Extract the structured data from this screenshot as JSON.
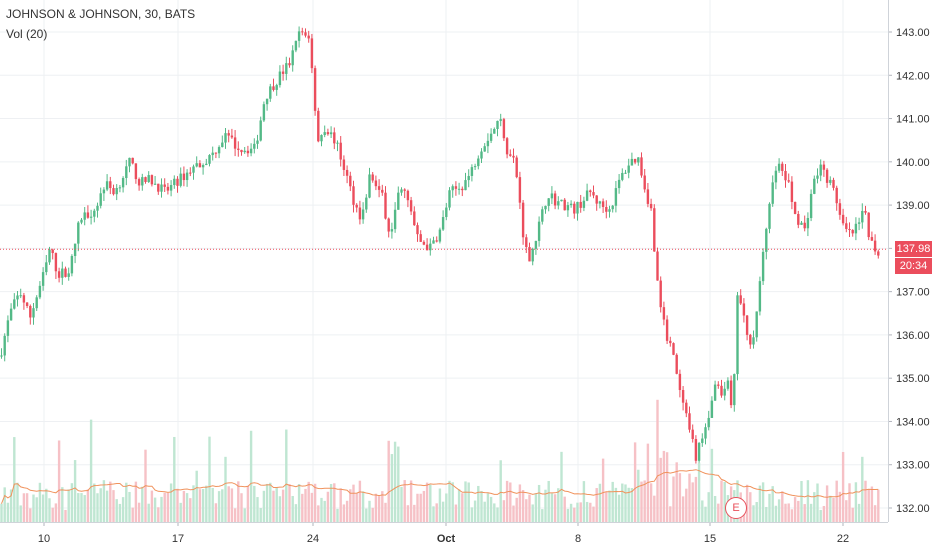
{
  "header": {
    "title": "JOHNSON & JOHNSON, 30, BATS",
    "volume_label": "Vol (20)"
  },
  "colors": {
    "up": "#53b987",
    "down": "#eb4d5c",
    "up_volume": "#bfe6d2",
    "down_volume": "#f6c1c6",
    "volume_ma": "#f0925c",
    "last_price": "#eb4d5c",
    "grid": "#eef0f3"
  },
  "price_axis": {
    "ticks": [
      "143.00",
      "142.00",
      "141.00",
      "140.00",
      "139.00",
      "138.00",
      "137.00",
      "136.00",
      "135.00",
      "134.00",
      "133.00",
      "132.00"
    ]
  },
  "time_axis": {
    "ticks": [
      "10",
      "17",
      "24",
      "Oct",
      "8",
      "15",
      "22"
    ]
  },
  "last_price": {
    "value": "137.98",
    "countdown": "20:34"
  },
  "earnings_marker": {
    "label": "E"
  },
  "chart_data": {
    "type": "candlestick",
    "title": "JOHNSON & JOHNSON, 30, BATS",
    "interval": "30",
    "ylim": [
      131.75,
      143.25
    ],
    "x_tick_labels": [
      "10",
      "17",
      "24",
      "Oct",
      "8",
      "15",
      "22"
    ],
    "last_price": 137.98,
    "volume_indicator": "Vol (20)",
    "price_path": [
      [
        0,
        135.5
      ],
      [
        10,
        136.5
      ],
      [
        20,
        137.0
      ],
      [
        30,
        136.4
      ],
      [
        45,
        137.5
      ],
      [
        50,
        138.0
      ],
      [
        58,
        137.4
      ],
      [
        70,
        137.5
      ],
      [
        80,
        138.7
      ],
      [
        95,
        138.9
      ],
      [
        105,
        139.5
      ],
      [
        115,
        139.3
      ],
      [
        130,
        140.0
      ],
      [
        140,
        139.5
      ],
      [
        150,
        139.6
      ],
      [
        165,
        139.3
      ],
      [
        180,
        139.6
      ],
      [
        195,
        139.9
      ],
      [
        210,
        140.1
      ],
      [
        225,
        140.6
      ],
      [
        240,
        140.3
      ],
      [
        255,
        140.3
      ],
      [
        265,
        141.5
      ],
      [
        280,
        142.0
      ],
      [
        290,
        142.3
      ],
      [
        300,
        143.0
      ],
      [
        310,
        142.9
      ],
      [
        312,
        142.1
      ],
      [
        318,
        140.5
      ],
      [
        325,
        140.8
      ],
      [
        335,
        140.5
      ],
      [
        345,
        139.8
      ],
      [
        355,
        139.0
      ],
      [
        362,
        138.7
      ],
      [
        370,
        139.7
      ],
      [
        382,
        139.2
      ],
      [
        390,
        138.3
      ],
      [
        395,
        139.0
      ],
      [
        402,
        139.5
      ],
      [
        410,
        138.9
      ],
      [
        418,
        138.2
      ],
      [
        430,
        138.0
      ],
      [
        440,
        138.4
      ],
      [
        450,
        139.3
      ],
      [
        460,
        139.4
      ],
      [
        470,
        139.7
      ],
      [
        480,
        140.3
      ],
      [
        492,
        140.7
      ],
      [
        500,
        141.0
      ],
      [
        508,
        140.2
      ],
      [
        515,
        140.0
      ],
      [
        520,
        139.0
      ],
      [
        525,
        138.0
      ],
      [
        530,
        137.8
      ],
      [
        540,
        138.6
      ],
      [
        548,
        139.3
      ],
      [
        555,
        139.1
      ],
      [
        565,
        139.0
      ],
      [
        575,
        138.9
      ],
      [
        590,
        139.3
      ],
      [
        600,
        139.0
      ],
      [
        610,
        138.9
      ],
      [
        620,
        139.6
      ],
      [
        630,
        140.0
      ],
      [
        638,
        140.1
      ],
      [
        646,
        139.3
      ],
      [
        652,
        138.8
      ],
      [
        656,
        137.5
      ],
      [
        660,
        136.7
      ],
      [
        666,
        136.0
      ],
      [
        672,
        135.8
      ],
      [
        678,
        134.8
      ],
      [
        684,
        134.3
      ],
      [
        690,
        133.7
      ],
      [
        696,
        133.2
      ],
      [
        702,
        133.6
      ],
      [
        708,
        134.1
      ],
      [
        715,
        134.8
      ],
      [
        722,
        134.6
      ],
      [
        727,
        135.0
      ],
      [
        733,
        134.0
      ],
      [
        737,
        137.0
      ],
      [
        742,
        136.6
      ],
      [
        748,
        135.8
      ],
      [
        755,
        136.1
      ],
      [
        760,
        137.3
      ],
      [
        766,
        138.3
      ],
      [
        772,
        139.6
      ],
      [
        780,
        139.9
      ],
      [
        788,
        139.5
      ],
      [
        795,
        138.8
      ],
      [
        805,
        138.4
      ],
      [
        812,
        139.4
      ],
      [
        820,
        139.9
      ],
      [
        828,
        139.6
      ],
      [
        836,
        139.2
      ],
      [
        842,
        138.5
      ],
      [
        850,
        138.3
      ],
      [
        858,
        138.5
      ],
      [
        865,
        138.9
      ],
      [
        870,
        138.2
      ],
      [
        878,
        137.9
      ]
    ]
  }
}
